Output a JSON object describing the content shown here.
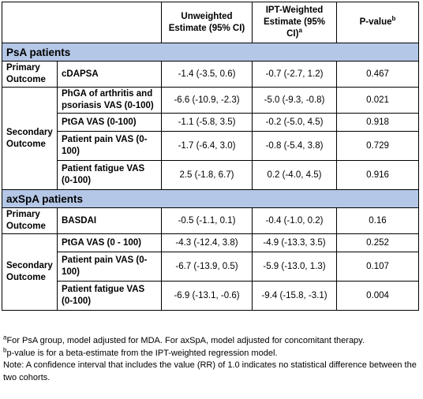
{
  "header": {
    "col_unweighted": "Unweighted Estimate (95% CI)",
    "col_ipt": "IPT-Weighted Estimate (95% CI)",
    "col_ipt_sup": "a",
    "col_p": "P-value",
    "col_p_sup": "b"
  },
  "psa": {
    "title": "PsA patients",
    "primary_label": "Primary Outcome",
    "secondary_label": "Secondary Outcome",
    "rows": [
      {
        "outcome": "cDAPSA",
        "unweighted": "-1.4 (-3.5, 0.6)",
        "ipt": "-0.7 (-2.7, 1.2)",
        "p": "0.467"
      },
      {
        "outcome": "PhGA of arthritis and psoriasis VAS (0-100)",
        "unweighted": "-6.6 (-10.9, -2.3)",
        "ipt": "-5.0 (-9.3, -0.8)",
        "p": "0.021"
      },
      {
        "outcome": "PtGA VAS (0-100)",
        "unweighted": "-1.1 (-5.8, 3.5)",
        "ipt": "-0.2 (-5.0, 4.5)",
        "p": "0.918"
      },
      {
        "outcome": "Patient pain VAS (0-100)",
        "unweighted": "-1.7 (-6.4, 3.0)",
        "ipt": "-0.8 (-5.4, 3.8)",
        "p": "0.729"
      },
      {
        "outcome": "Patient fatigue VAS (0-100)",
        "unweighted": "2.5 (-1.8, 6.7)",
        "ipt": "0.2 (-4.0, 4.5)",
        "p": "0.916"
      }
    ]
  },
  "axspa": {
    "title": "axSpA patients",
    "primary_label": "Primary Outcome",
    "secondary_label": "Secondary Outcome",
    "rows": [
      {
        "outcome": "BASDAI",
        "unweighted": "-0.5 (-1.1, 0.1)",
        "ipt": "-0.4 (-1.0, 0.2)",
        "p": "0.16"
      },
      {
        "outcome": "PtGA VAS (0 - 100)",
        "unweighted": "-4.3 (-12.4, 3.8)",
        "ipt": "-4.9 (-13.3, 3.5)",
        "p": "0.252"
      },
      {
        "outcome": "Patient pain VAS (0-100)",
        "unweighted": "-6.7 (-13.9, 0.5)",
        "ipt": "-5.9 (-13.0, 1.3)",
        "p": "0.107"
      },
      {
        "outcome": "Patient fatigue VAS (0-100)",
        "unweighted": "-6.9 (-13.1, -0.6)",
        "ipt": "-9.4 (-15.8, -3.1)",
        "p": "0.004"
      }
    ]
  },
  "notes": {
    "note_a_sup": "a",
    "note_a": "For PsA group, model adjusted for MDA. For axSpA, model adjusted for concomitant therapy.",
    "note_b_sup": "b",
    "note_b": "p-value is for a beta-estimate from the IPT-weighted regression model.",
    "note_c": "Note: A confidence interval that includes the value (RR) of 1.0 indicates no statistical difference between the two cohorts."
  }
}
